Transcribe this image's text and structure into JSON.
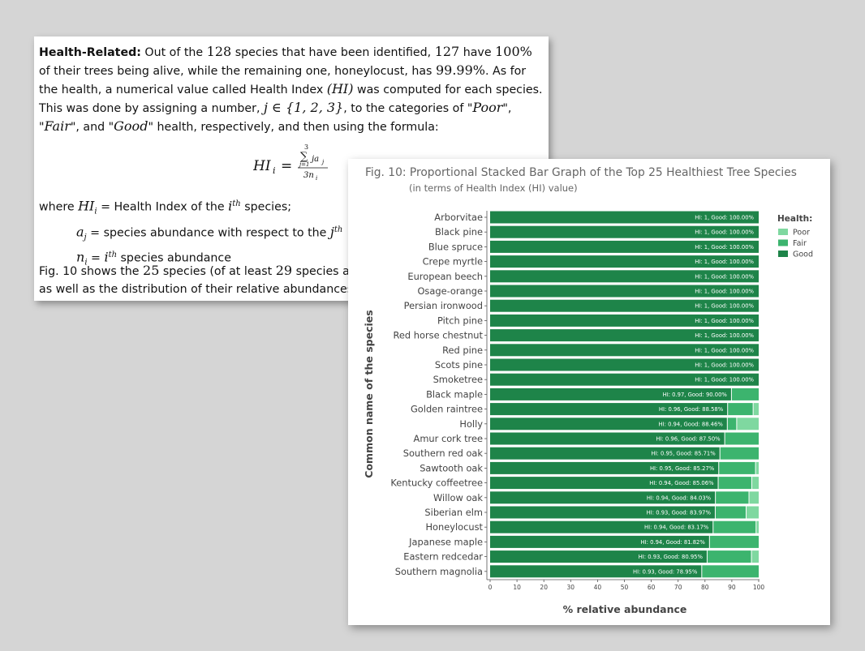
{
  "document": {
    "heading": "Health-Related:",
    "p1_a": " Out of the ",
    "n_species": "128",
    "p1_b": " species that have been identified, ",
    "n_alive": "127",
    "p1_c": " have ",
    "pct_alive": "100%",
    "p1_d": " of their trees being alive, while the remaining one, honeylocust, has ",
    "pct_honey": "99.99%",
    "p1_e": ". As for the health, a numerical value called Health Index ",
    "hi_symbol": "(HI)",
    "p1_f": " was computed for each species. This was done by assigning a number, ",
    "j_set": "j ∈ {1, 2, 3}",
    "p1_g": ", to the categories of \"",
    "cat_poor": "Poor",
    "sep1": "\", \"",
    "cat_fair": "Fair",
    "p1_h": "\", and \"",
    "cat_good": "Good",
    "p1_i": "\" health, respectively, and then using the formula:",
    "formula_lhs": "HI",
    "formula_sub": "i",
    "formula_eq": "=",
    "formula_sum_top": "3",
    "formula_sum": "∑",
    "formula_sum_bottom": "j=1",
    "formula_num": "ja",
    "formula_num_sub": "j",
    "formula_den": "3n",
    "formula_den_sub": "i",
    "where": "where ",
    "def1_sym": "HI",
    "def1_sub": "i",
    "def1_text": " = Health Index of the ",
    "def1_i": "i",
    "def1_th": "th",
    "def1_end": " species;",
    "def2_sym": "a",
    "def2_sub": "j",
    "def2_text": " = species abundance with respect to the ",
    "def2_j": "j",
    "def2_th": "th",
    "def3_sym": "n",
    "def3_sub": "i",
    "def3_eq": " = ",
    "def3_i": "i",
    "def3_th": "th",
    "def3_text": " species abundance",
    "last_a": "Fig. 10 shows the ",
    "last_n": "25",
    "last_b": " species (of at least ",
    "last_n2": "29",
    "last_c": " species abur",
    "last_line2": "as well as the distribution of their relative abundances c"
  },
  "chart_data": {
    "type": "bar",
    "orientation": "horizontal",
    "stacked": true,
    "title": "Fig. 10: Proportional Stacked Bar Graph of the Top 25 Healthiest Tree Species",
    "subtitle": "(in terms of Health Index (HI) value)",
    "xlabel": "% relative abundance",
    "ylabel": "Common name of the species",
    "xlim": [
      0,
      100
    ],
    "xticks": [
      "0",
      "10",
      "20",
      "30",
      "40",
      "50",
      "60",
      "70",
      "80",
      "90",
      "100"
    ],
    "legend_title": "Health:",
    "legend_position": "right",
    "colors": {
      "Poor": "#7fd8a0",
      "Fair": "#3cb46e",
      "Good": "#1e8449"
    },
    "categories": [
      "Arborvitae",
      "Black pine",
      "Blue spruce",
      "Crepe myrtle",
      "European beech",
      "Osage-orange",
      "Persian ironwood",
      "Pitch pine",
      "Red horse chestnut",
      "Red pine",
      "Scots pine",
      "Smoketree",
      "Black maple",
      "Golden raintree",
      "Holly",
      "Amur cork tree",
      "Southern red oak",
      "Sawtooth oak",
      "Kentucky coffeetree",
      "Willow oak",
      "Siberian elm",
      "Honeylocust",
      "Japanese maple",
      "Eastern redcedar",
      "Southern magnolia"
    ],
    "series": [
      {
        "name": "Good",
        "values": [
          100,
          100,
          100,
          100,
          100,
          100,
          100,
          100,
          100,
          100,
          100,
          100,
          90.0,
          88.58,
          88.46,
          87.5,
          85.71,
          85.27,
          85.06,
          84.03,
          83.97,
          83.17,
          81.82,
          80.95,
          78.95
        ]
      },
      {
        "name": "Fair",
        "values": [
          0,
          0,
          0,
          0,
          0,
          0,
          0,
          0,
          0,
          0,
          0,
          0,
          10.0,
          9.5,
          3.5,
          12.5,
          14.29,
          13.7,
          12.5,
          12.5,
          11.5,
          16.0,
          18.18,
          16.5,
          21.05
        ]
      },
      {
        "name": "Poor",
        "values": [
          0,
          0,
          0,
          0,
          0,
          0,
          0,
          0,
          0,
          0,
          0,
          0,
          0,
          1.92,
          8.04,
          0,
          0,
          1.03,
          2.44,
          3.47,
          4.53,
          0.83,
          0,
          2.55,
          0
        ]
      }
    ],
    "bar_labels": [
      "HI: 1, Good: 100.00%",
      "HI: 1, Good: 100.00%",
      "HI: 1, Good: 100.00%",
      "HI: 1, Good: 100.00%",
      "HI: 1, Good: 100.00%",
      "HI: 1, Good: 100.00%",
      "HI: 1, Good: 100.00%",
      "HI: 1, Good: 100.00%",
      "HI: 1, Good: 100.00%",
      "HI: 1, Good: 100.00%",
      "HI: 1, Good: 100.00%",
      "HI: 1, Good: 100.00%",
      "HI: 0.97, Good: 90.00%",
      "HI: 0.96, Good: 88.58%",
      "HI: 0.94, Good: 88.46%",
      "HI: 0.96, Good: 87.50%",
      "HI: 0.95, Good: 85.71%",
      "HI: 0.95, Good: 85.27%",
      "HI: 0.94, Good: 85.06%",
      "HI: 0.94, Good: 84.03%",
      "HI: 0.93, Good: 83.97%",
      "HI: 0.94, Good: 83.17%",
      "HI: 0.94, Good: 81.82%",
      "HI: 0.93, Good: 80.95%",
      "HI: 0.93, Good: 78.95%"
    ],
    "grid": false
  }
}
